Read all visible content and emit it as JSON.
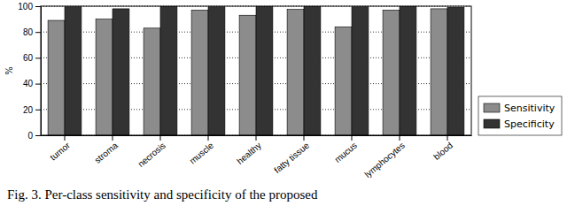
{
  "chart_data": {
    "type": "bar",
    "y_label": "%",
    "annotations": [
      "Fig. 3. Per-class sensitivity and specificity of the proposed"
    ],
    "categories": [
      "tumor",
      "stroma",
      "necrosis",
      "muscle",
      "healthy",
      "fatty tissue",
      "mucus",
      "lymphocytes",
      "blood"
    ],
    "series": [
      {
        "name": "Sensitivity",
        "color": "#8c8c8c",
        "values": [
          89,
          90,
          83,
          97,
          93,
          97.5,
          84,
          97,
          98
        ]
      },
      {
        "name": "Specificity",
        "color": "#333333",
        "values": [
          99.5,
          98,
          99.8,
          99.5,
          99.8,
          99.8,
          99.5,
          99.8,
          99.2
        ]
      }
    ],
    "ylim": [
      0,
      100
    ],
    "yticks": [
      0,
      20,
      40,
      60,
      80,
      100
    ],
    "grid": true,
    "legend": "right"
  }
}
